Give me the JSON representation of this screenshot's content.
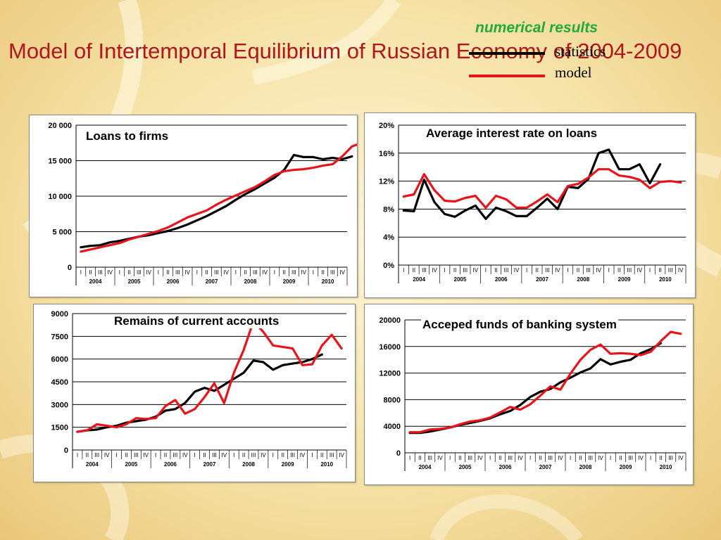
{
  "title": "Model of Intertemporal Equilibrium of Russian Economy of 2004-2009",
  "legend": {
    "heading": "numerical results",
    "items": [
      {
        "label": "statistics",
        "color": "#000000"
      },
      {
        "label": "model",
        "color": "#e8141b"
      }
    ]
  },
  "colors": {
    "title": "#b0161e",
    "heading": "#22aa3a",
    "statistics": "#000000",
    "model": "#e8141b"
  },
  "quarter_labels": [
    "I",
    "II",
    "III",
    "IV"
  ],
  "years": [
    "2004",
    "2005",
    "2006",
    "2007",
    "2008",
    "2009",
    "2010"
  ],
  "chart_data": [
    {
      "type": "line",
      "title": "Loans to firms",
      "ylim": [
        0,
        20000
      ],
      "yticks": [
        0,
        5000,
        10000,
        15000,
        20000
      ],
      "ytick_labels": [
        "0",
        "5 000",
        "10 000",
        "15 000",
        "20 000"
      ],
      "grid": true,
      "series": [
        {
          "name": "statistics",
          "values": [
            2800,
            3000,
            3100,
            3500,
            3700,
            4000,
            4300,
            4500,
            4800,
            5100,
            5500,
            6000,
            6600,
            7200,
            7900,
            8600,
            9500,
            10300,
            11000,
            11800,
            12600,
            13700,
            15800,
            15500,
            15500,
            15200,
            15400,
            15200,
            15600
          ]
        },
        {
          "name": "model",
          "values": [
            2200,
            2500,
            2800,
            3100,
            3400,
            3900,
            4300,
            4700,
            5100,
            5600,
            6300,
            7000,
            7500,
            8000,
            8800,
            9500,
            10100,
            10700,
            11300,
            12100,
            13000,
            13500,
            13700,
            13800,
            14000,
            14300,
            14500,
            15600,
            17000,
            17500,
            17900
          ]
        }
      ]
    },
    {
      "type": "line",
      "title": "Average interest rate on loans",
      "ylim": [
        0,
        20
      ],
      "yticks": [
        0,
        4,
        8,
        12,
        16,
        20
      ],
      "ytick_labels": [
        "0%",
        "4%",
        "8%",
        "12%",
        "16%",
        "20%"
      ],
      "grid": true,
      "series": [
        {
          "name": "statistics",
          "values": [
            7.8,
            7.7,
            12.2,
            9.0,
            7.3,
            6.9,
            7.8,
            8.5,
            6.6,
            8.2,
            7.7,
            7.0,
            7.0,
            8.2,
            9.5,
            8.0,
            11.2,
            11.0,
            12.3,
            16.0,
            16.5,
            13.7,
            13.7,
            14.4,
            11.7,
            14.4
          ]
        },
        {
          "name": "model",
          "values": [
            9.8,
            10.1,
            13.0,
            10.7,
            9.2,
            9.1,
            9.6,
            9.9,
            8.2,
            9.9,
            9.4,
            8.2,
            8.2,
            9.1,
            10.1,
            9.0,
            11.3,
            11.6,
            12.5,
            13.7,
            13.7,
            12.8,
            12.6,
            12.2,
            11.0,
            11.9,
            12.0,
            11.8
          ]
        }
      ]
    },
    {
      "type": "line",
      "title": "Remains of current accounts",
      "ylim": [
        0,
        9000
      ],
      "yticks": [
        0,
        1500,
        3000,
        4500,
        6000,
        7500,
        9000
      ],
      "ytick_labels": [
        "0",
        "1500",
        "3000",
        "4500",
        "6000",
        "7500",
        "9000"
      ],
      "grid": true,
      "series": [
        {
          "name": "statistics",
          "values": [
            1200,
            1300,
            1350,
            1500,
            1600,
            1800,
            1900,
            2000,
            2200,
            2600,
            2700,
            3100,
            3850,
            4100,
            3900,
            4300,
            4700,
            5100,
            5900,
            5800,
            5300,
            5600,
            5700,
            5800,
            6000,
            6300
          ]
        },
        {
          "name": "model",
          "values": [
            1200,
            1300,
            1700,
            1600,
            1500,
            1700,
            2100,
            2050,
            2100,
            2900,
            3300,
            2400,
            2700,
            3500,
            4400,
            3100,
            5100,
            6600,
            8500,
            7800,
            6900,
            6800,
            6700,
            5600,
            5650,
            6900,
            7600,
            6700
          ]
        }
      ]
    },
    {
      "type": "line",
      "title": "Acceped funds of banking system",
      "ylim": [
        0,
        20000
      ],
      "yticks": [
        0,
        4000,
        8000,
        12000,
        16000,
        20000
      ],
      "ytick_labels": [
        "0",
        "4000",
        "8000",
        "12000",
        "16000",
        "20000"
      ],
      "grid": true,
      "series": [
        {
          "name": "statistics",
          "values": [
            3000,
            3000,
            3200,
            3500,
            3800,
            4200,
            4500,
            4800,
            5200,
            5800,
            6300,
            7200,
            8400,
            9200,
            9600,
            10600,
            11300,
            12100,
            12700,
            14100,
            13300,
            13700,
            14000,
            15000,
            15600,
            16500
          ]
        },
        {
          "name": "model",
          "values": [
            3100,
            3100,
            3500,
            3600,
            3800,
            4300,
            4700,
            4900,
            5300,
            6100,
            6900,
            6500,
            7300,
            8600,
            10000,
            9500,
            11900,
            14000,
            15500,
            16300,
            14900,
            15000,
            14900,
            14700,
            15200,
            16800,
            18200,
            17900
          ]
        }
      ]
    }
  ]
}
